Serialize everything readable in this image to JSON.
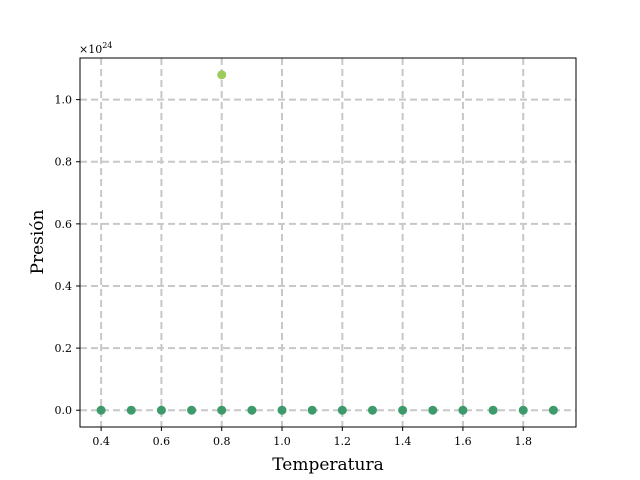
{
  "chart_data": {
    "type": "scatter",
    "title": "",
    "xlabel": "Temperatura",
    "ylabel": "Presión",
    "y_exponent_label": "×10",
    "y_exponent_power": "24",
    "xlim": [
      0.33,
      1.975
    ],
    "ylim": [
      -0.054,
      1.134
    ],
    "x_ticks": [
      0.4,
      0.6,
      0.8,
      1.0,
      1.2,
      1.4,
      1.6,
      1.8
    ],
    "x_tick_labels": [
      "0.4",
      "0.6",
      "0.8",
      "1.0",
      "1.2",
      "1.4",
      "1.6",
      "1.8"
    ],
    "y_ticks": [
      0.0,
      0.2,
      0.4,
      0.6,
      0.8,
      1.0
    ],
    "y_tick_labels": [
      "0.0",
      "0.2",
      "0.4",
      "0.6",
      "0.8",
      "1.0"
    ],
    "grid": true,
    "grid_style": "dashed",
    "colors": {
      "point": "#3d9a6a",
      "outlier": "#9ccb5e",
      "grid": "#c8c8c8"
    },
    "points": [
      {
        "x": 0.4,
        "y": 0.0
      },
      {
        "x": 0.5,
        "y": 0.0
      },
      {
        "x": 0.6,
        "y": 0.0
      },
      {
        "x": 0.7,
        "y": 0.0
      },
      {
        "x": 0.8,
        "y": 0.0
      },
      {
        "x": 0.8,
        "y": 1.08,
        "outlier": true
      },
      {
        "x": 0.9,
        "y": 0.0
      },
      {
        "x": 1.0,
        "y": 0.0
      },
      {
        "x": 1.1,
        "y": 0.0
      },
      {
        "x": 1.2,
        "y": 0.0
      },
      {
        "x": 1.3,
        "y": 0.0
      },
      {
        "x": 1.4,
        "y": 0.0
      },
      {
        "x": 1.5,
        "y": 0.0
      },
      {
        "x": 1.6,
        "y": 0.0
      },
      {
        "x": 1.7,
        "y": 0.0
      },
      {
        "x": 1.8,
        "y": 0.0
      },
      {
        "x": 1.9,
        "y": 0.0
      }
    ]
  }
}
